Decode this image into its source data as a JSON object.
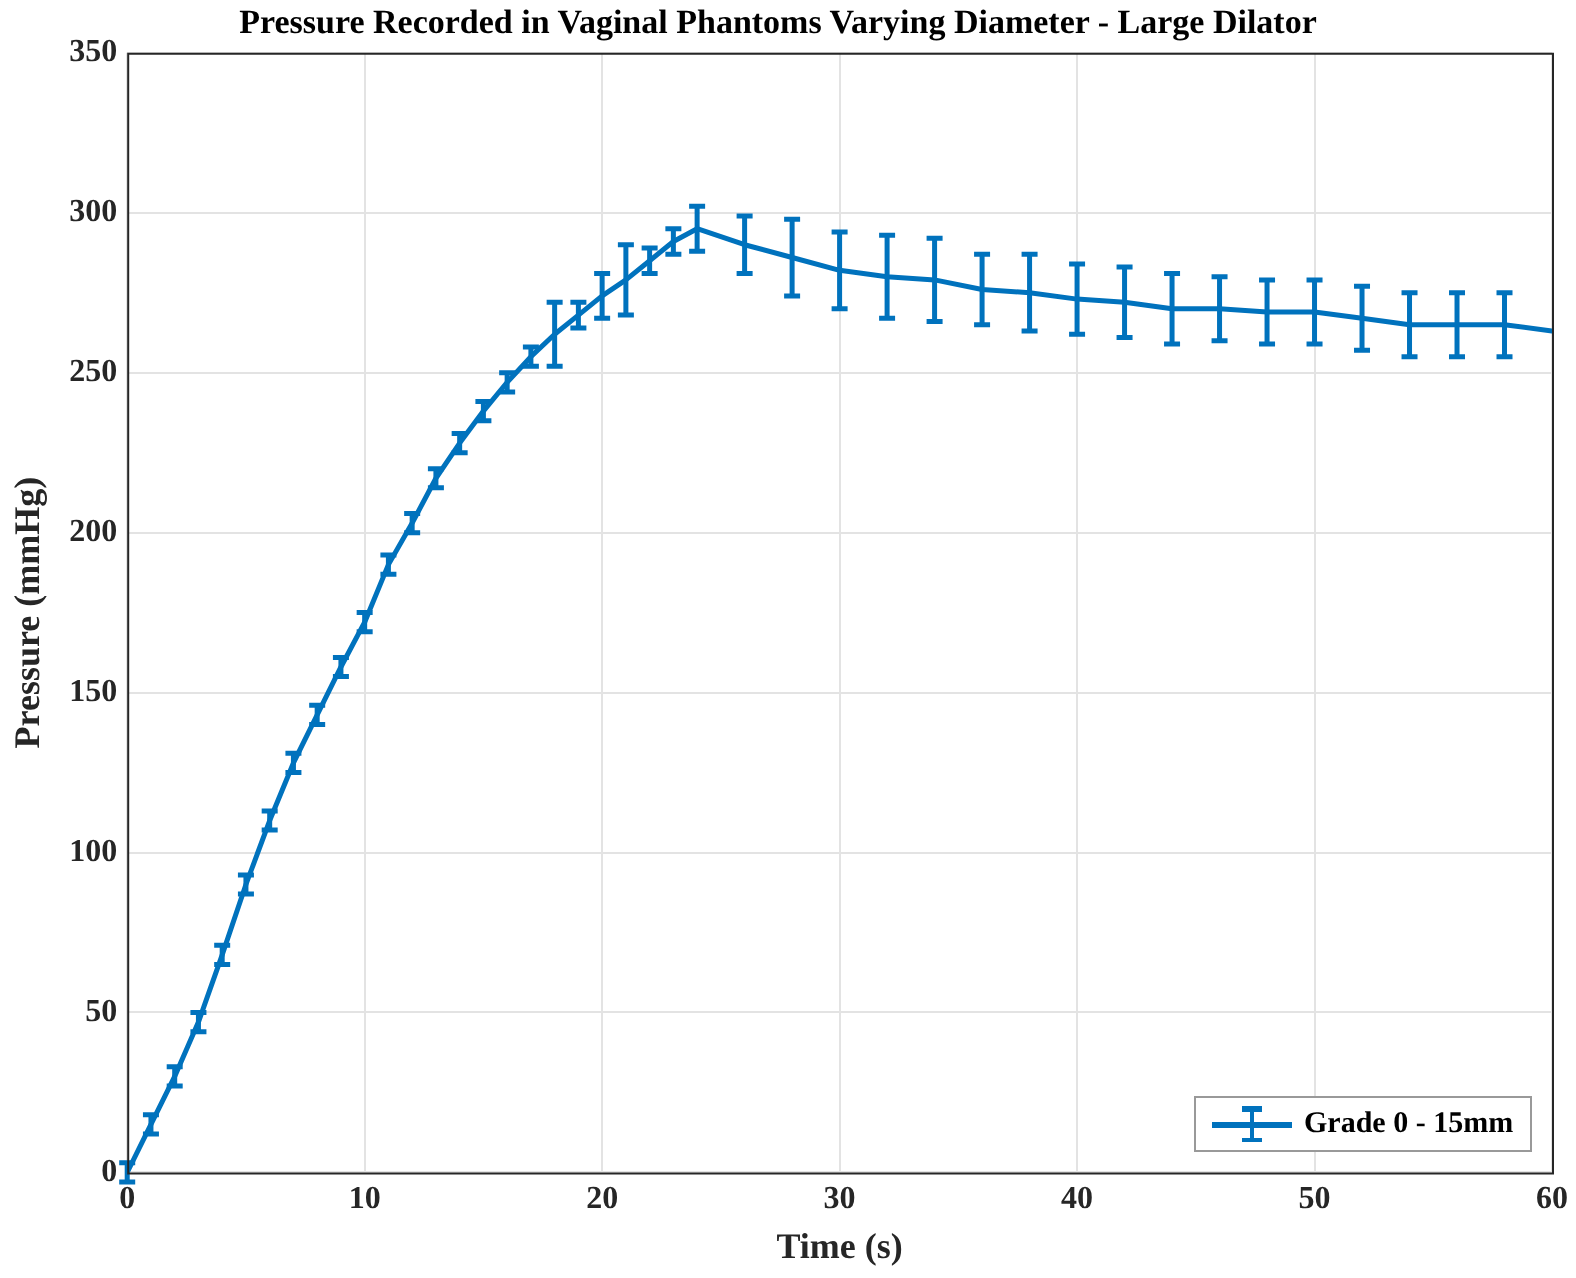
{
  "chart_data": {
    "type": "line",
    "title": "Pressure Recorded in Vaginal Phantoms Varying Diameter - Large Dilator",
    "xlabel": "Time (s)",
    "ylabel": "Pressure (mmHg)",
    "x": [
      0,
      1,
      2,
      3,
      4,
      5,
      6,
      7,
      8,
      9,
      10,
      11,
      12,
      13,
      14,
      15,
      16,
      17,
      18,
      19,
      20,
      21,
      22,
      23,
      24,
      26,
      28,
      30,
      32,
      34,
      36,
      38,
      40,
      42,
      44,
      46,
      48,
      50,
      52,
      54,
      56,
      58,
      60
    ],
    "series": [
      {
        "name": "Grade 0 - 15mm",
        "color": "#0072bd",
        "values": [
          0,
          15,
          30,
          47,
          68,
          90,
          110,
          128,
          143,
          158,
          172,
          190,
          203,
          217,
          228,
          238,
          247,
          255,
          262,
          268,
          274,
          279,
          285,
          291,
          295,
          290,
          286,
          282,
          280,
          279,
          276,
          275,
          273,
          272,
          270,
          270,
          269,
          269,
          267,
          265,
          265,
          265,
          263
        ],
        "errors": [
          3,
          3,
          3,
          3,
          3,
          3,
          3,
          3,
          3,
          3,
          3,
          3,
          3,
          3,
          3,
          3,
          3,
          3,
          10,
          4,
          7,
          11,
          4,
          4,
          7,
          9,
          12,
          12,
          13,
          13,
          11,
          12,
          11,
          11,
          11,
          10,
          10,
          10,
          10,
          10,
          10,
          10,
          null
        ]
      }
    ],
    "xlim": [
      0,
      60
    ],
    "xticks": [
      0,
      10,
      20,
      30,
      40,
      50,
      60
    ],
    "ylim": [
      0,
      350
    ],
    "yticks": [
      0,
      50,
      100,
      150,
      200,
      250,
      300,
      350
    ],
    "grid": true,
    "legend": "bottom right",
    "marker": "none",
    "line_style": "solid"
  }
}
